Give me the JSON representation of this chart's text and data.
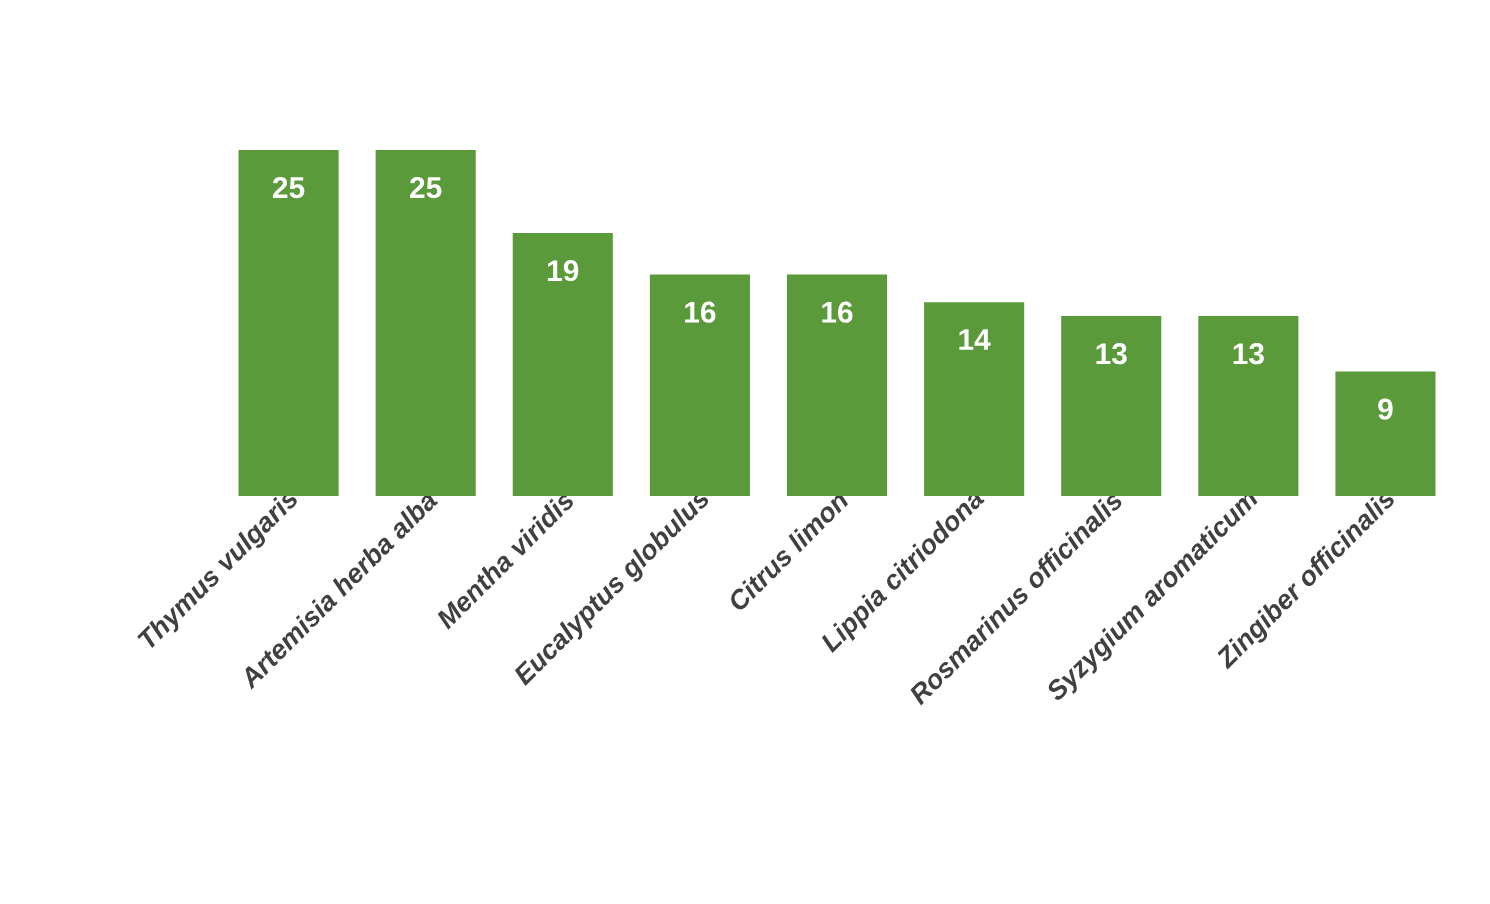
{
  "chart_data": {
    "type": "bar",
    "categories": [
      "Thymus vulgaris",
      "Artemisia herba alba",
      "Mentha viridis",
      "Eucalyptus globulus",
      "Citrus limon",
      "Lippia citriodona",
      "Rosmarinus officinalis",
      "Syzygium aromaticum",
      "Zingiber officinalis"
    ],
    "values": [
      25,
      25,
      19,
      16,
      16,
      14,
      13,
      13,
      9
    ],
    "color": "#5b9a3b",
    "data_labels": true
  }
}
